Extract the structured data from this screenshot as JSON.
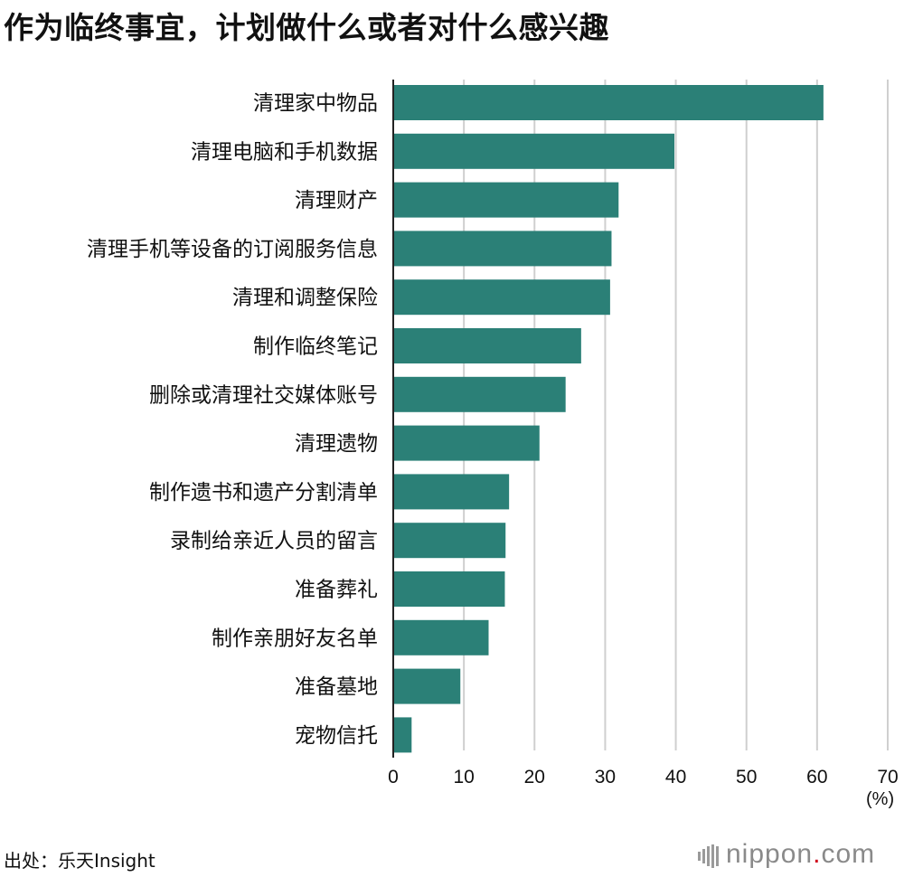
{
  "title": "作为临终事宜，计划做什么或者对什么感兴趣",
  "unit_label": "(%)",
  "source": "出处：乐天Insight",
  "brand": {
    "name": "nippon",
    "dot": ".",
    "tld": "com",
    "logo_icon": "barcode-mark-icon"
  },
  "colors": {
    "bar": "#2b8077",
    "grid": "#cfcfcf",
    "axis": "#222222"
  },
  "chart_data": {
    "type": "bar",
    "orientation": "horizontal",
    "title": "作为临终事宜，计划做什么或者对什么感兴趣",
    "xlabel": "(%)",
    "ylabel": "",
    "xlim": [
      0,
      70
    ],
    "ticks": [
      0,
      10,
      20,
      30,
      40,
      50,
      60,
      70
    ],
    "grid": true,
    "categories": [
      "清理家中物品",
      "清理电脑和手机数据",
      "清理财产",
      "清理手机等设备的订阅服务信息",
      "清理和调整保险",
      "制作临终笔记",
      "删除或清理社交媒体账号",
      "清理遗物",
      "制作遗书和遗产分割清单",
      "录制给亲近人员的留言",
      "准备葬礼",
      "制作亲朋好友名单",
      "准备墓地",
      "宠物信托"
    ],
    "values": [
      60.9,
      39.8,
      31.9,
      30.9,
      30.7,
      26.6,
      24.4,
      20.7,
      16.4,
      15.9,
      15.8,
      13.5,
      9.5,
      2.6
    ]
  }
}
